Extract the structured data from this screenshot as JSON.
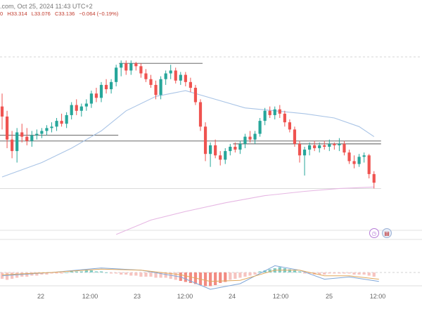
{
  "header": {
    "source": ".com, Oct 25, 2024 11:43 UTC+2",
    "open_fragment": "0",
    "high": "H33.314",
    "low": "L33.076",
    "close": "C33.136",
    "change": "−0.064 (−0.19%)"
  },
  "colors": {
    "up": "#26a69a",
    "down": "#ef5350",
    "ma_fast": "#a9c4e6",
    "ma_slow": "#e6b7e3",
    "macd_line": "#7fa6d8",
    "signal_line": "#e0a85c"
  },
  "icons": [
    "clock-event-icon",
    "us-flag-icon"
  ],
  "chart_data": {
    "type": "candlestick",
    "title": "",
    "x_labels": [
      "22",
      "12:00",
      "23",
      "12:00",
      "24",
      "12:00",
      "25",
      "12:00"
    ],
    "ylim": [
      32.7,
      33.95
    ],
    "candles": [
      [
        33.61,
        33.7,
        33.45,
        33.54
      ],
      [
        33.54,
        33.58,
        33.32,
        33.38
      ],
      [
        33.38,
        33.44,
        33.25,
        33.3
      ],
      [
        33.3,
        33.46,
        33.22,
        33.43
      ],
      [
        33.43,
        33.49,
        33.36,
        33.4
      ],
      [
        33.4,
        33.46,
        33.34,
        33.37
      ],
      [
        33.37,
        33.44,
        33.33,
        33.41
      ],
      [
        33.41,
        33.45,
        33.38,
        33.42
      ],
      [
        33.42,
        33.46,
        33.39,
        33.44
      ],
      [
        33.44,
        33.48,
        33.41,
        33.46
      ],
      [
        33.46,
        33.5,
        33.43,
        33.47
      ],
      [
        33.47,
        33.53,
        33.44,
        33.51
      ],
      [
        33.51,
        33.56,
        33.47,
        33.49
      ],
      [
        33.49,
        33.57,
        33.46,
        33.55
      ],
      [
        33.55,
        33.64,
        33.52,
        33.62
      ],
      [
        33.62,
        33.66,
        33.55,
        33.58
      ],
      [
        33.58,
        33.63,
        33.54,
        33.61
      ],
      [
        33.61,
        33.66,
        33.58,
        33.63
      ],
      [
        33.63,
        33.72,
        33.6,
        33.7
      ],
      [
        33.7,
        33.74,
        33.64,
        33.67
      ],
      [
        33.67,
        33.78,
        33.64,
        33.76
      ],
      [
        33.76,
        33.8,
        33.7,
        33.73
      ],
      [
        33.73,
        33.8,
        33.7,
        33.78
      ],
      [
        33.78,
        33.9,
        33.75,
        33.88
      ],
      [
        33.88,
        33.93,
        33.82,
        33.91
      ],
      [
        33.91,
        33.93,
        33.83,
        33.86
      ],
      [
        33.86,
        33.93,
        33.83,
        33.91
      ],
      [
        33.91,
        33.92,
        33.86,
        33.89
      ],
      [
        33.89,
        33.91,
        33.81,
        33.84
      ],
      [
        33.84,
        33.87,
        33.78,
        33.8
      ],
      [
        33.8,
        33.83,
        33.74,
        33.76
      ],
      [
        33.76,
        33.79,
        33.66,
        33.69
      ],
      [
        33.69,
        33.82,
        33.66,
        33.8
      ],
      [
        33.8,
        33.86,
        33.76,
        33.84
      ],
      [
        33.84,
        33.9,
        33.8,
        33.86
      ],
      [
        33.86,
        33.88,
        33.77,
        33.79
      ],
      [
        33.79,
        33.85,
        33.76,
        33.83
      ],
      [
        33.83,
        33.85,
        33.75,
        33.78
      ],
      [
        33.78,
        33.81,
        33.71,
        33.74
      ],
      [
        33.74,
        33.76,
        33.62,
        33.64
      ],
      [
        33.64,
        33.66,
        33.44,
        33.47
      ],
      [
        33.47,
        33.5,
        33.23,
        33.28
      ],
      [
        33.28,
        33.36,
        33.19,
        33.34
      ],
      [
        33.34,
        33.38,
        33.25,
        33.27
      ],
      [
        33.27,
        33.3,
        33.2,
        33.24
      ],
      [
        33.24,
        33.32,
        33.21,
        33.3
      ],
      [
        33.3,
        33.35,
        33.27,
        33.33
      ],
      [
        33.33,
        33.36,
        33.29,
        33.31
      ],
      [
        33.31,
        33.37,
        33.28,
        33.35
      ],
      [
        33.35,
        33.42,
        33.32,
        33.4
      ],
      [
        33.4,
        33.44,
        33.36,
        33.38
      ],
      [
        33.38,
        33.44,
        33.35,
        33.42
      ],
      [
        33.42,
        33.53,
        33.4,
        33.51
      ],
      [
        33.51,
        33.6,
        33.48,
        33.58
      ],
      [
        33.58,
        33.61,
        33.53,
        33.55
      ],
      [
        33.55,
        33.61,
        33.52,
        33.59
      ],
      [
        33.59,
        33.62,
        33.53,
        33.56
      ],
      [
        33.56,
        33.58,
        33.47,
        33.5
      ],
      [
        33.5,
        33.52,
        33.43,
        33.45
      ],
      [
        33.45,
        33.47,
        33.33,
        33.35
      ],
      [
        33.35,
        33.37,
        33.22,
        33.27
      ],
      [
        33.27,
        33.33,
        33.13,
        33.31
      ],
      [
        33.31,
        33.36,
        33.27,
        33.34
      ],
      [
        33.34,
        33.37,
        33.3,
        33.32
      ],
      [
        33.32,
        33.36,
        33.29,
        33.34
      ],
      [
        33.34,
        33.37,
        33.31,
        33.33
      ],
      [
        33.33,
        33.38,
        33.3,
        33.35
      ],
      [
        33.35,
        33.36,
        33.31,
        33.34
      ],
      [
        33.34,
        33.39,
        33.3,
        33.35
      ],
      [
        33.35,
        33.37,
        33.27,
        33.29
      ],
      [
        33.29,
        33.31,
        33.21,
        33.23
      ],
      [
        33.23,
        33.27,
        33.18,
        33.21
      ],
      [
        33.21,
        33.28,
        33.19,
        33.26
      ],
      [
        33.26,
        33.29,
        33.22,
        33.27
      ],
      [
        33.27,
        33.28,
        33.11,
        33.14
      ],
      [
        33.14,
        33.16,
        33.04,
        33.08
      ]
    ],
    "ma_fast": [
      [
        0,
        33.12
      ],
      [
        8,
        33.22
      ],
      [
        14,
        33.32
      ],
      [
        20,
        33.44
      ],
      [
        25,
        33.58
      ],
      [
        31,
        33.68
      ],
      [
        37,
        33.72
      ],
      [
        43,
        33.66
      ],
      [
        49,
        33.6
      ],
      [
        55,
        33.58
      ],
      [
        61,
        33.56
      ],
      [
        67,
        33.53
      ],
      [
        72,
        33.47
      ],
      [
        75,
        33.4
      ]
    ],
    "ma_slow": [
      [
        23,
        32.72
      ],
      [
        30,
        32.82
      ],
      [
        37,
        32.88
      ],
      [
        45,
        32.94
      ],
      [
        53,
        32.99
      ],
      [
        61,
        33.02
      ],
      [
        68,
        33.04
      ],
      [
        75,
        33.05
      ]
    ],
    "horizontal_levels": [
      {
        "price": 33.91,
        "from": 24,
        "to": 40
      },
      {
        "price": 33.41,
        "from": 0,
        "to": 23
      },
      {
        "price": 33.37,
        "from": 0,
        "to": 76
      },
      {
        "price": 33.35,
        "from": 47,
        "to": 76
      },
      {
        "price": 33.04,
        "from": 0,
        "to": 76
      }
    ],
    "macd": {
      "histogram": [
        -6,
        -7,
        -6,
        -5,
        -4,
        -4,
        -3,
        -3,
        -2,
        -2,
        -1,
        -1,
        -1,
        0,
        1,
        1,
        1,
        2,
        2,
        1,
        1,
        0,
        -1,
        -1,
        -2,
        -2,
        -3,
        -3,
        -4,
        -4,
        -4,
        -5,
        -5,
        -5,
        -6,
        -7,
        -8,
        -9,
        -10,
        -11,
        -12,
        -13,
        -13,
        -12,
        -10,
        -9,
        -7,
        -6,
        -5,
        -4,
        -3,
        -2,
        1,
        2,
        3,
        4,
        5,
        4,
        3,
        2,
        1,
        -1,
        -1,
        -2,
        -2,
        -2,
        -1,
        -1,
        -1,
        -1,
        -1,
        -2,
        -2,
        -2,
        -3,
        -4
      ],
      "macd_line": [
        [
          0,
          -3
        ],
        [
          10,
          0
        ],
        [
          20,
          4
        ],
        [
          28,
          2
        ],
        [
          36,
          -4
        ],
        [
          42,
          -15
        ],
        [
          48,
          -10
        ],
        [
          55,
          6
        ],
        [
          60,
          2
        ],
        [
          65,
          -6
        ],
        [
          70,
          -4
        ],
        [
          76,
          -8
        ]
      ],
      "signal_line": [
        [
          0,
          -2
        ],
        [
          10,
          0
        ],
        [
          20,
          3
        ],
        [
          28,
          2
        ],
        [
          36,
          -2
        ],
        [
          42,
          -8
        ],
        [
          48,
          -7
        ],
        [
          55,
          2
        ],
        [
          60,
          2
        ],
        [
          65,
          -3
        ],
        [
          70,
          -3
        ],
        [
          76,
          -6
        ]
      ]
    }
  }
}
